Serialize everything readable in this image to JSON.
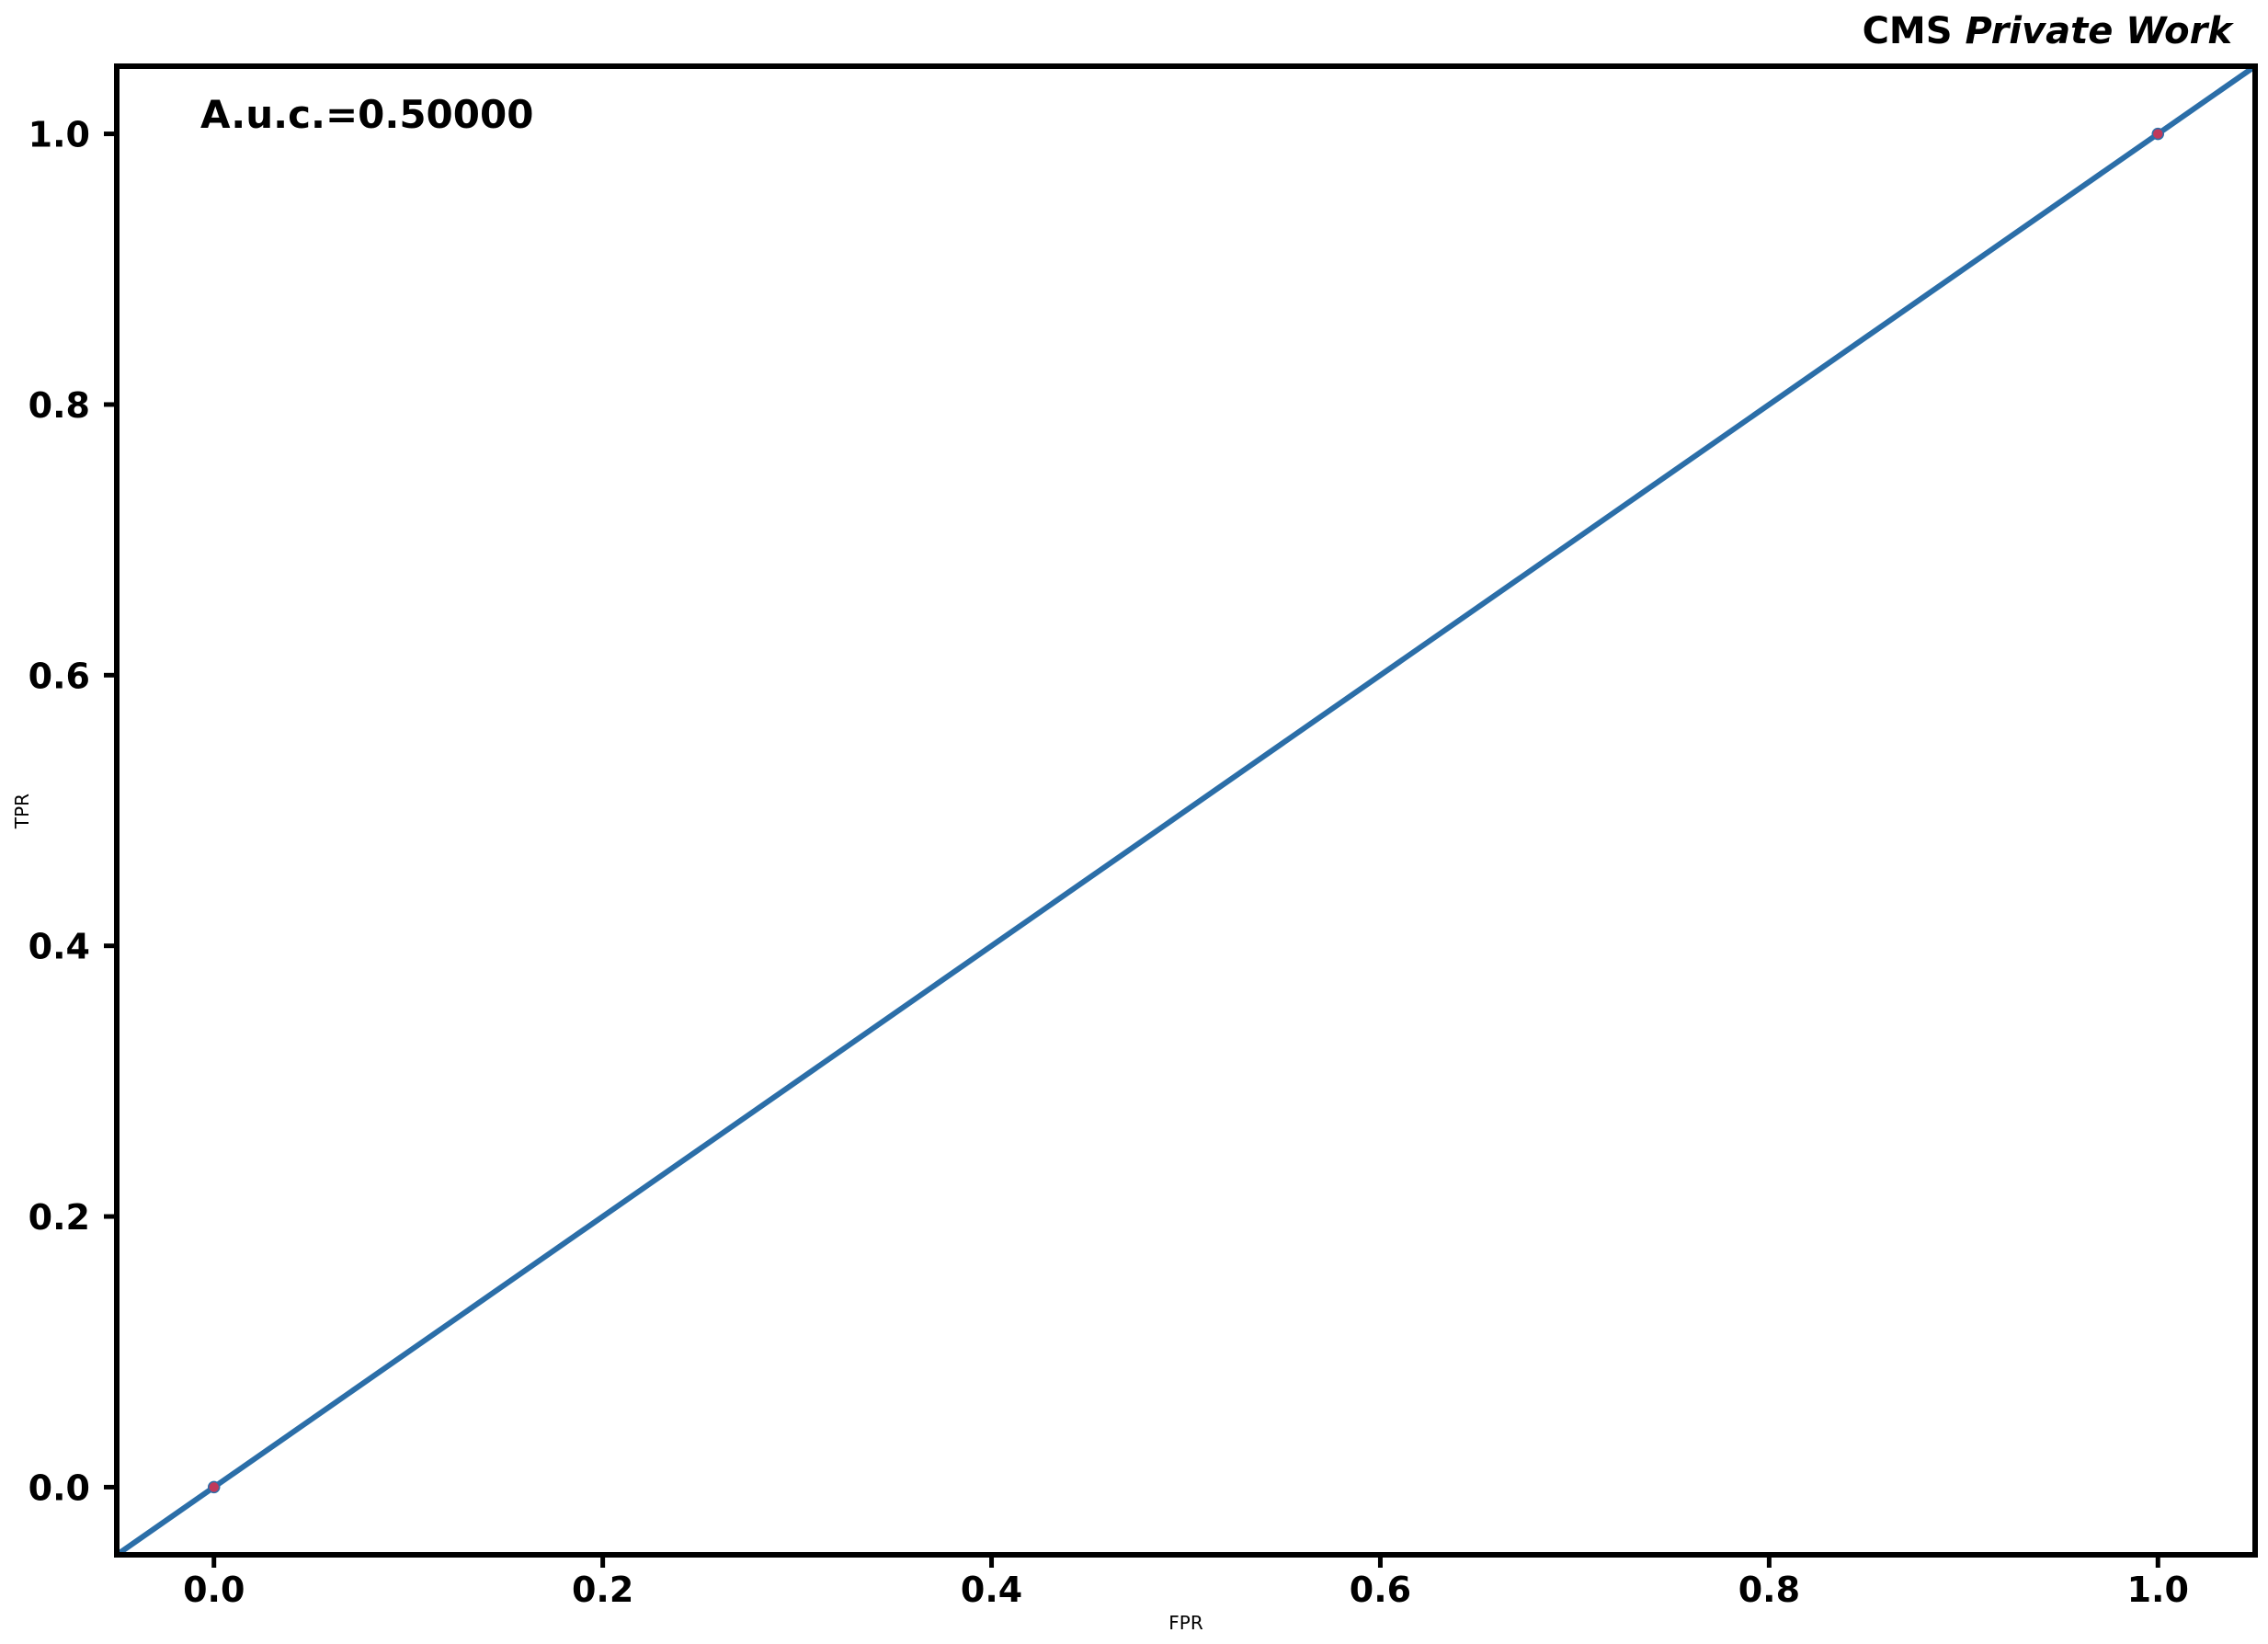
{
  "header": {
    "experiment": "CMS",
    "status": "Private Work"
  },
  "annotation": {
    "auc_text": "A.u.c.=0.50000"
  },
  "colors": {
    "curve": "#2b6ea8",
    "points": "#c0395b",
    "frame": "#000000"
  },
  "chart_data": {
    "type": "line",
    "title": "",
    "xlabel": "FPR",
    "ylabel": "TPR",
    "xlim": [
      -0.05,
      1.05
    ],
    "ylim": [
      -0.05,
      1.05
    ],
    "xticks": [
      0.0,
      0.2,
      0.4,
      0.6,
      0.8,
      1.0
    ],
    "yticks": [
      0.0,
      0.2,
      0.4,
      0.6,
      0.8,
      1.0
    ],
    "xtick_labels": [
      "0.0",
      "0.2",
      "0.4",
      "0.6",
      "0.8",
      "1.0"
    ],
    "ytick_labels": [
      "0.0",
      "0.2",
      "0.4",
      "0.6",
      "0.8",
      "1.0"
    ],
    "grid": false,
    "series": [
      {
        "x": [
          0.0,
          1.0
        ],
        "y": [
          0.0,
          1.0
        ],
        "line_extends_to_axes": true,
        "markers": "points"
      }
    ]
  }
}
